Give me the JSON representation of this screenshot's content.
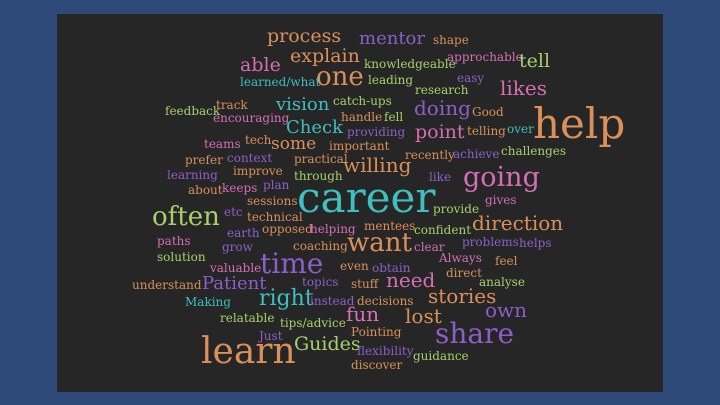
{
  "word_cloud": {
    "colors": {
      "slide_background": "#2e4a78",
      "cloud_background": "#262626",
      "orange": "#d9905a",
      "teal": "#3fbfbf",
      "purple": "#8b5fc7",
      "pink": "#d46fb5",
      "green": "#a6d16a",
      "salmon": "#e07a6a"
    },
    "words": {
      "process": "process",
      "mentor": "mentor",
      "shape": "shape",
      "explain": "explain",
      "approchable": "approchable",
      "tell": "tell",
      "able": "able",
      "knowledgeable": "knowledgeable",
      "one": "one",
      "learned_what": "learned/what",
      "leading": "leading",
      "easy": "easy",
      "research": "research",
      "likes": "likes",
      "vision": "vision",
      "catch_ups": "catch-ups",
      "doing": "doing",
      "feedback": "feedback",
      "track": "track",
      "encouraging": "encouraging",
      "handle": "handle",
      "fell": "fell",
      "Good": "Good",
      "help": "help",
      "Check": "Check",
      "providing": "providing",
      "point": "point",
      "telling": "telling",
      "over": "over",
      "teams": "teams",
      "tech": "tech",
      "some": "some",
      "important": "important",
      "recently": "recently",
      "achieve": "achieve",
      "challenges": "challenges",
      "prefer": "prefer",
      "context": "context",
      "practical": "practical",
      "willing": "willing",
      "learning": "learning",
      "improve": "improve",
      "through": "through",
      "like": "like",
      "going": "going",
      "about": "about",
      "keeps": "keeps",
      "plan": "plan",
      "career": "career",
      "gives": "gives",
      "sessions": "sessions",
      "often": "often",
      "etc": "etc",
      "technical": "technical",
      "provide": "provide",
      "earth": "earth",
      "opposed": "opposed",
      "helping": "helping",
      "mentees": "mentees",
      "confident": "confident",
      "direction": "direction",
      "paths": "paths",
      "grow": "grow",
      "coaching": "coaching",
      "want": "want",
      "clear": "clear",
      "problems": "problems",
      "helps": "helps",
      "solution": "solution",
      "time": "time",
      "Always": "Always",
      "feel": "feel",
      "valuable": "valuable",
      "even": "even",
      "obtain": "obtain",
      "direct": "direct",
      "understand": "understand",
      "Patient": "Patient",
      "topics": "topics",
      "stuff": "stuff",
      "need": "need",
      "analyse": "analyse",
      "Making": "Making",
      "right": "right",
      "instead": "instead",
      "decisions": "decisions",
      "stories": "stories",
      "own": "own",
      "relatable": "relatable",
      "tips_advice": "tips/advice",
      "fun": "fun",
      "lost": "lost",
      "Just": "Just",
      "Pointing": "Pointing",
      "share": "share",
      "learn": "learn",
      "Guides": "Guides",
      "flexibility": "flexibility",
      "guidance": "guidance",
      "discover": "discover"
    }
  }
}
